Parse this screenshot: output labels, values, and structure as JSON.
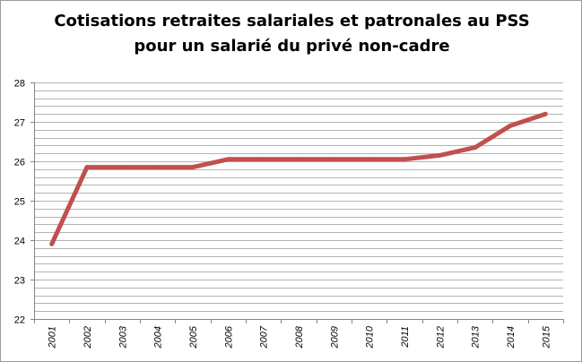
{
  "chart_data": {
    "type": "line",
    "title": "Cotisations retraites salariales et patronales au PSS",
    "subtitle": "pour un salarié du privé non-cadre",
    "xlabel": "",
    "ylabel": "",
    "categories": [
      "2001",
      "2002",
      "2003",
      "2004",
      "2005",
      "2006",
      "2007",
      "2008",
      "2009",
      "2010",
      "2011",
      "2012",
      "2013",
      "2014",
      "2015"
    ],
    "series": [
      {
        "values": [
          23.9,
          25.85,
          25.85,
          25.85,
          25.85,
          26.05,
          26.05,
          26.05,
          26.05,
          26.05,
          26.05,
          26.15,
          26.35,
          26.9,
          27.2
        ]
      }
    ],
    "ylim": [
      22,
      28
    ],
    "y_ticks": [
      "22",
      "23",
      "24",
      "25",
      "26",
      "27",
      "28"
    ],
    "y_minor_step": 0.2,
    "grid": true,
    "legend": "none",
    "colors": {
      "line": "#c0504d",
      "grid": "#b3b3b3",
      "axis": "#868686"
    }
  }
}
